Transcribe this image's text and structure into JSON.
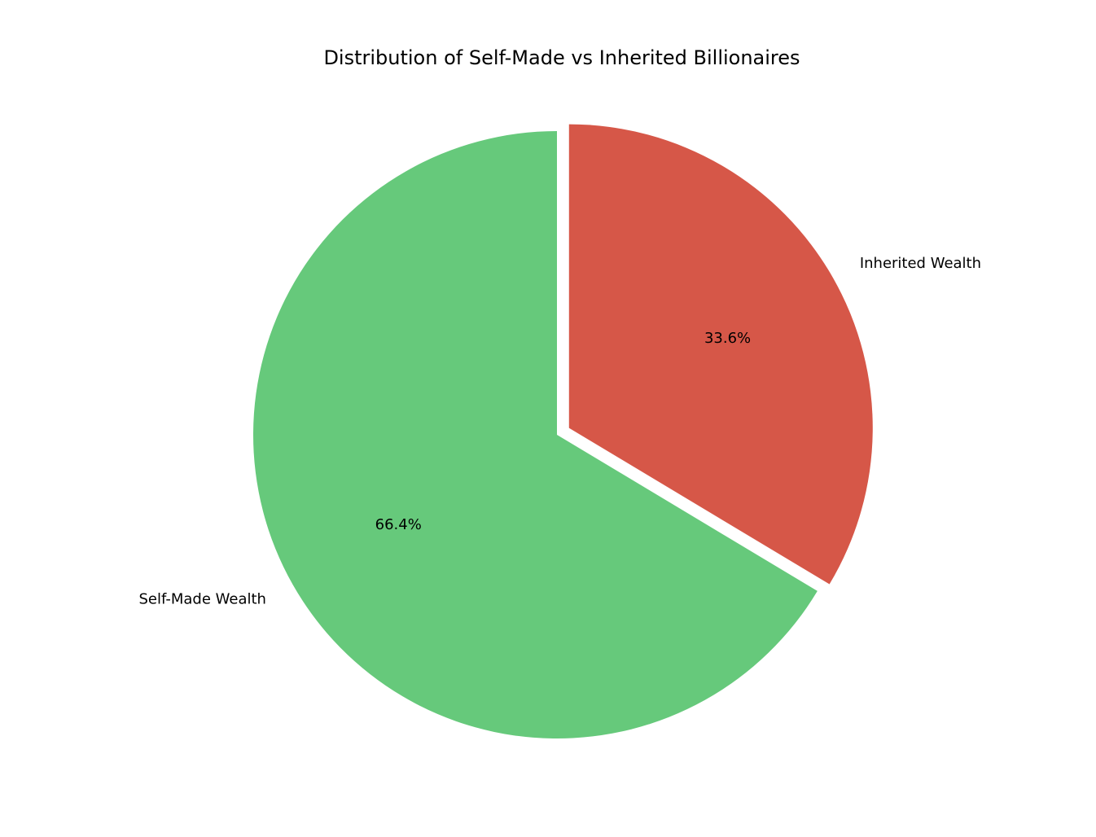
{
  "chart_data": {
    "type": "pie",
    "title": "Distribution of Self-Made vs Inherited Billionaires",
    "slices": [
      {
        "label": "Inherited Wealth",
        "value": 33.6,
        "percent_label": "33.6%",
        "color": "#d65748",
        "exploded": true
      },
      {
        "label": "Self-Made Wealth",
        "value": 66.4,
        "percent_label": "66.4%",
        "color": "#66c97b",
        "exploded": false
      }
    ],
    "start_angle_deg": 90,
    "direction": "clockwise",
    "legend": "none"
  }
}
